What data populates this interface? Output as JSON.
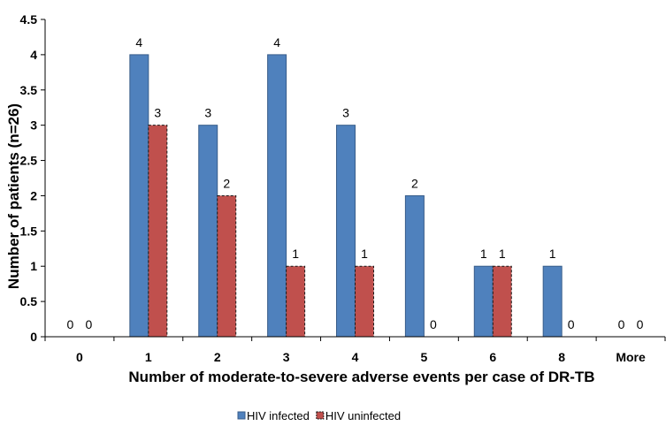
{
  "chart_data": {
    "type": "bar",
    "categories": [
      "0",
      "1",
      "2",
      "3",
      "4",
      "5",
      "6",
      "8",
      "More"
    ],
    "series": [
      {
        "name": "HIV infected",
        "values": [
          0,
          4,
          3,
          4,
          3,
          2,
          1,
          1,
          0
        ],
        "color": "#4f81bd",
        "stroke": "#385d8a",
        "dash": false
      },
      {
        "name": "HIV uninfected",
        "values": [
          0,
          3,
          2,
          1,
          1,
          0,
          1,
          0,
          0
        ],
        "color": "#c0504d",
        "stroke": "#1a1a1a",
        "dash": true
      }
    ],
    "xlabel": "Number of moderate-to-severe adverse events per case of DR-TB",
    "ylabel": "Number of patients (n=26)",
    "ylim": [
      0,
      4.5
    ],
    "yticks": [
      "0",
      "0.5",
      "1",
      "1.5",
      "2",
      "2.5",
      "3",
      "3.5",
      "4",
      "4.5"
    ],
    "grid": false,
    "legend_position": "bottom"
  }
}
